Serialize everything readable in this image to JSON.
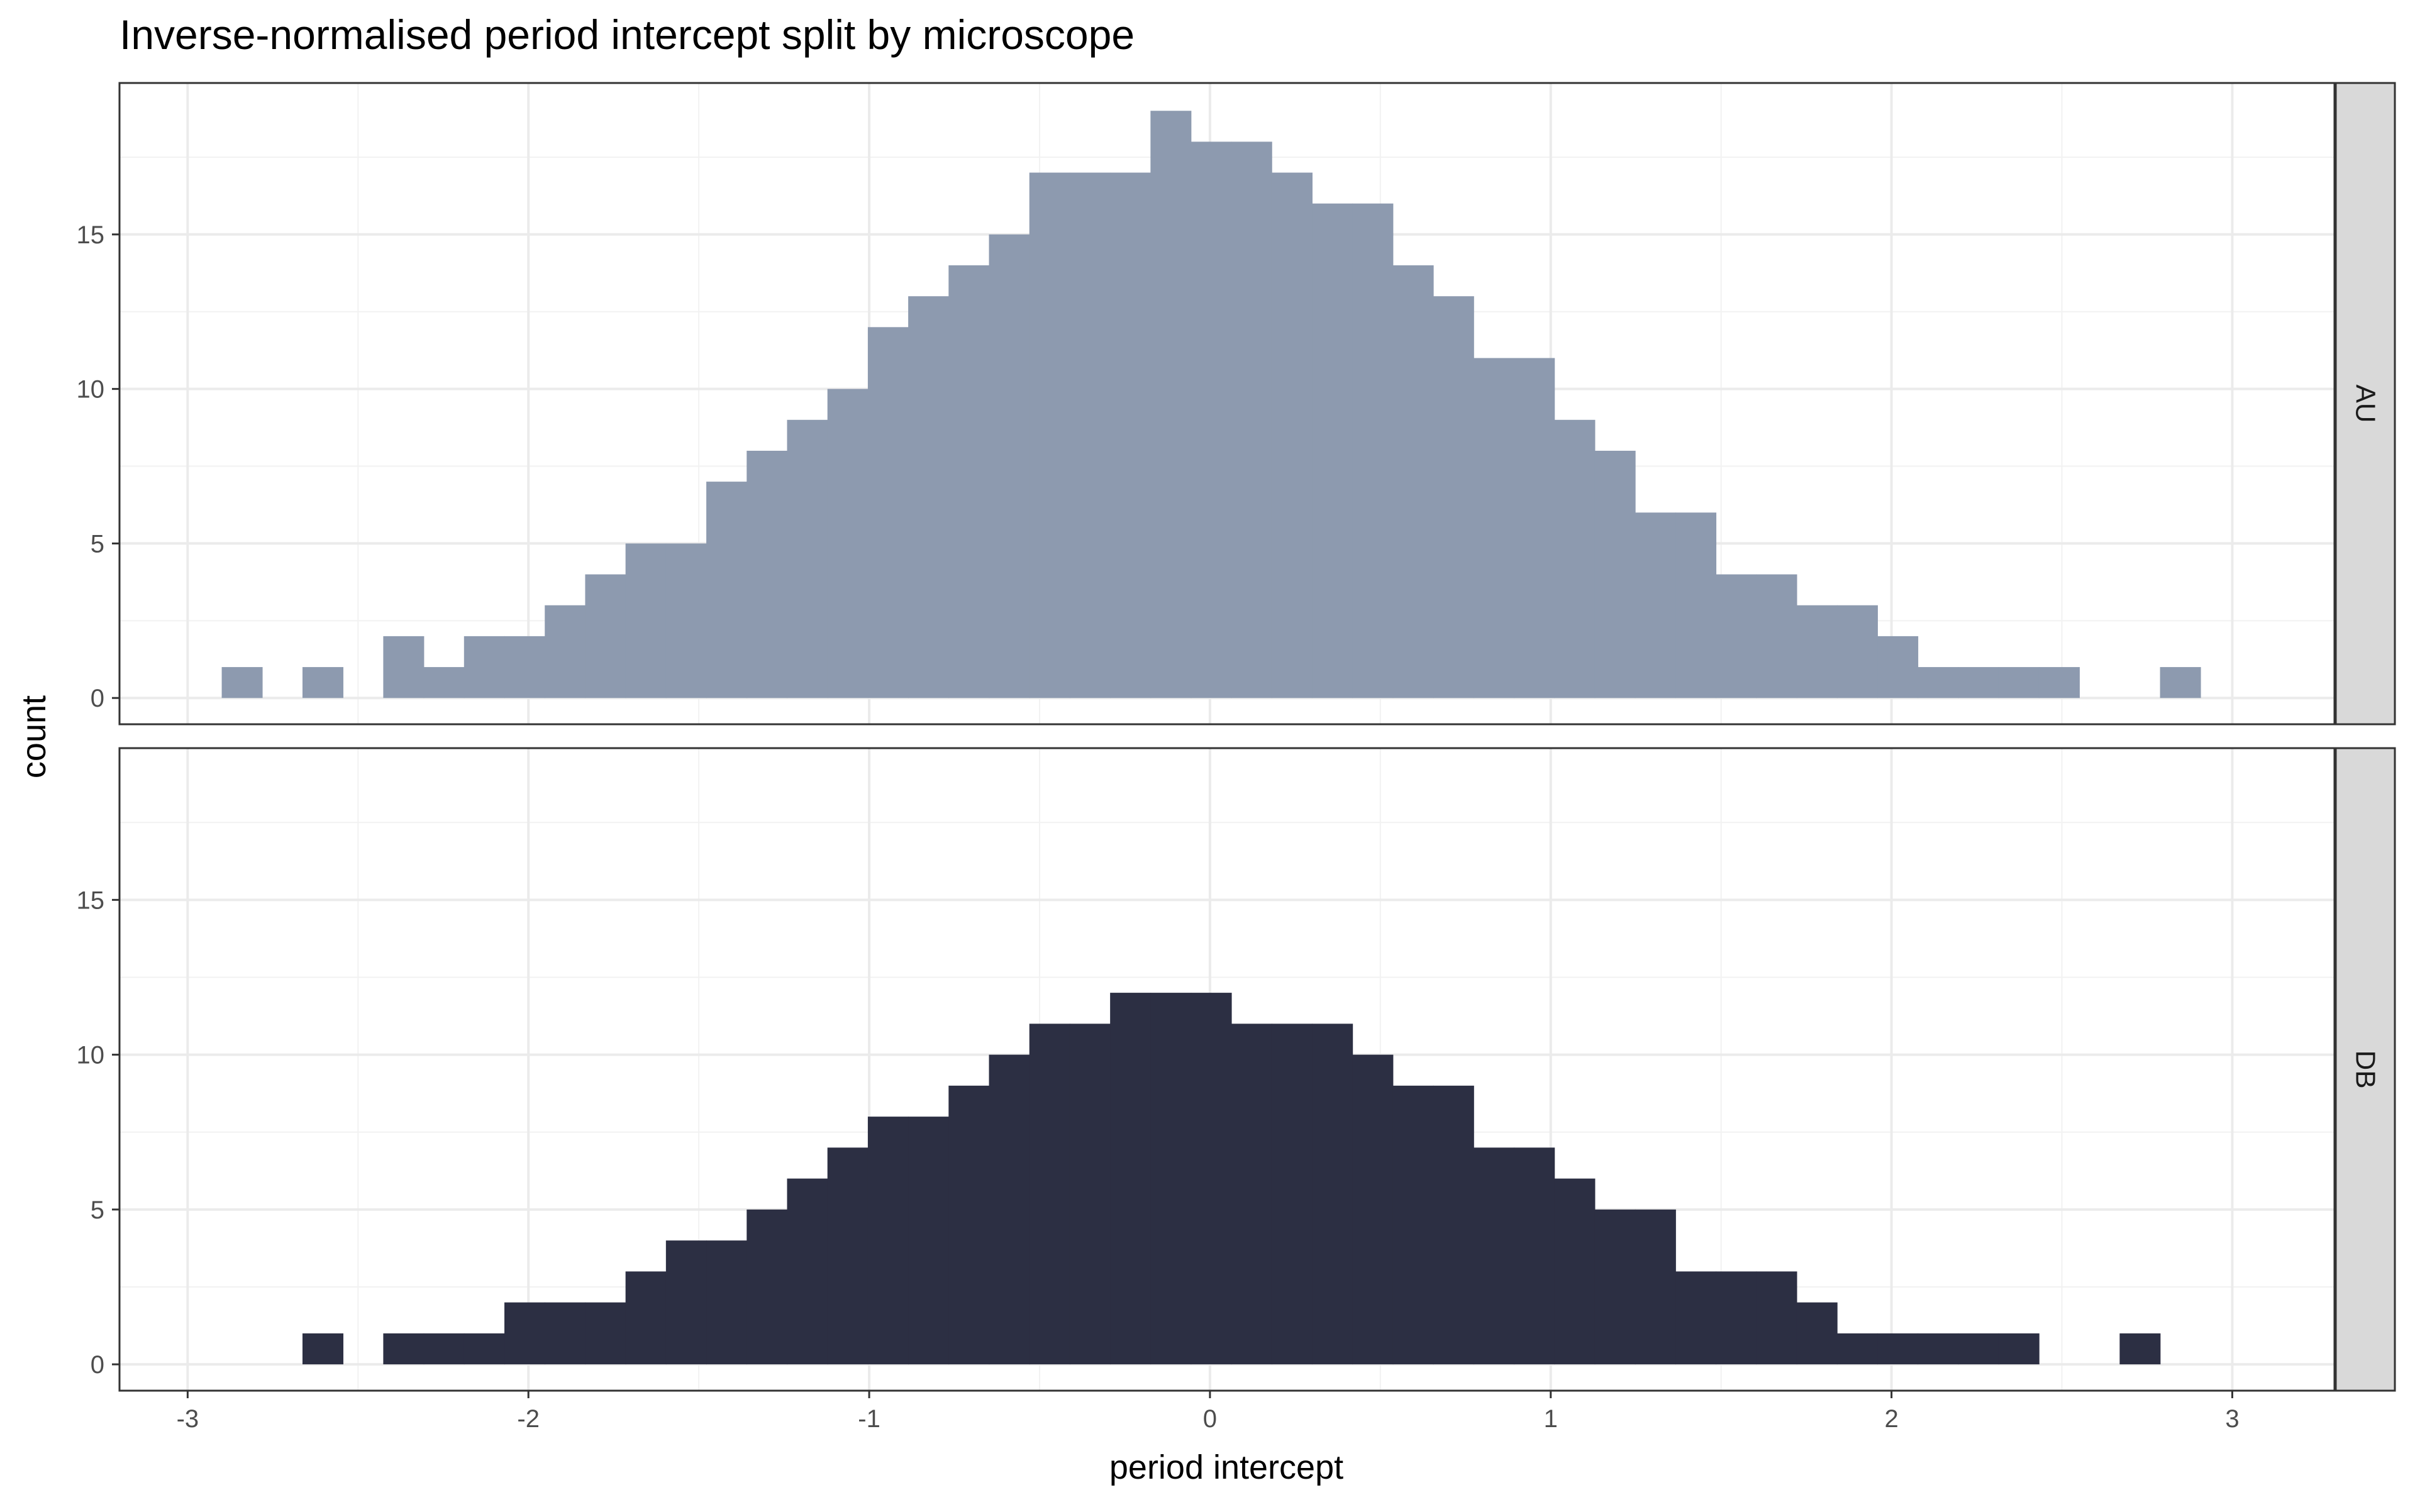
{
  "chart_data": {
    "type": "bar",
    "title": "Inverse-normalised period intercept split by microscope",
    "xlabel": "period intercept",
    "ylabel": "count",
    "xlim": [
      -3.2,
      3.3
    ],
    "ylim": [
      -0.85,
      19.9
    ],
    "x_ticks": [
      -3,
      -2,
      -1,
      0,
      1,
      2,
      3
    ],
    "x_tick_labels": [
      "-3",
      "-2",
      "-1",
      "0",
      "1",
      "2",
      "3"
    ],
    "y_ticks": [
      0,
      5,
      10,
      15
    ],
    "y_tick_labels": [
      "0",
      "5",
      "10",
      "15"
    ],
    "grid": true,
    "legend": "none",
    "bin_width": 0.1185,
    "bin_start": -2.9,
    "facets": [
      {
        "label": "AU",
        "color": "#8d9aaf",
        "values": [
          1,
          0,
          1,
          0,
          2,
          1,
          2,
          2,
          3,
          4,
          5,
          5,
          7,
          8,
          9,
          10,
          12,
          13,
          14,
          15,
          17,
          17,
          17,
          19,
          18,
          18,
          17,
          16,
          16,
          14,
          13,
          11,
          11,
          9,
          8,
          6,
          6,
          4,
          4,
          3,
          3,
          2,
          1,
          1,
          1,
          1,
          0,
          0,
          1
        ]
      },
      {
        "label": "DB",
        "color": "#2c2f43",
        "values": [
          0,
          0,
          1,
          0,
          1,
          1,
          1,
          2,
          2,
          2,
          3,
          4,
          4,
          5,
          6,
          7,
          8,
          8,
          9,
          10,
          11,
          11,
          12,
          12,
          12,
          11,
          11,
          11,
          10,
          9,
          9,
          7,
          7,
          6,
          5,
          5,
          3,
          3,
          3,
          2,
          1,
          1,
          1,
          1,
          1,
          0,
          0,
          1
        ]
      }
    ]
  }
}
